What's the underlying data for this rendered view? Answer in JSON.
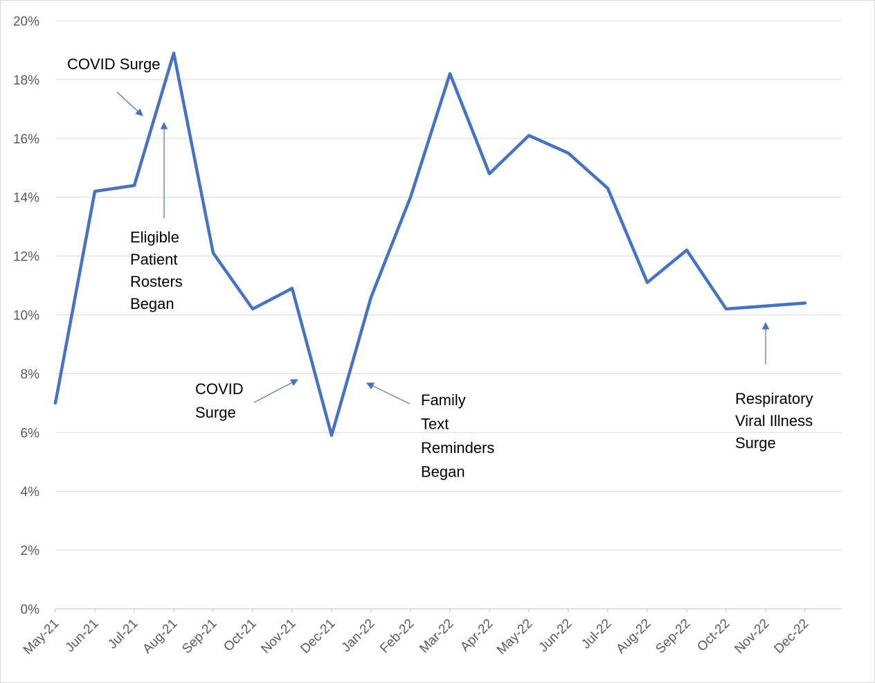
{
  "chart_data": {
    "type": "line",
    "categories": [
      "May-21",
      "Jun-21",
      "Jul-21",
      "Aug-21",
      "Sep-21",
      "Oct-21",
      "Nov-21",
      "Dec-21",
      "Jan-22",
      "Feb-22",
      "Mar-22",
      "Apr-22",
      "May-22",
      "Jun-22",
      "Jul-22",
      "Aug-22",
      "Sep-22",
      "Oct-22",
      "Nov-22",
      "Dec-22"
    ],
    "series": [
      {
        "values": [
          7.0,
          14.2,
          14.4,
          18.9,
          12.1,
          10.2,
          10.9,
          5.9,
          10.6,
          14.0,
          18.2,
          14.8,
          16.1,
          15.5,
          14.3,
          11.1,
          12.2,
          10.2,
          null,
          10.4
        ]
      }
    ],
    "yticks": [
      "0%",
      "2%",
      "4%",
      "6%",
      "8%",
      "10%",
      "12%",
      "14%",
      "16%",
      "18%",
      "20%"
    ],
    "ylim": [
      0,
      20
    ],
    "grid": true,
    "line_color": "#4472c4",
    "annotations": [
      {
        "id": "covid-surge-1",
        "lines": [
          "COVID Surge"
        ]
      },
      {
        "id": "eligible-rosters",
        "lines": [
          "Eligible",
          "Patient",
          "Rosters",
          "Began"
        ]
      },
      {
        "id": "covid-surge-2",
        "lines": [
          "COVID",
          "Surge"
        ]
      },
      {
        "id": "family-text",
        "lines": [
          "Family",
          "Text",
          "Reminders",
          "Began"
        ]
      },
      {
        "id": "respiratory",
        "lines": [
          "Respiratory",
          "Viral Illness",
          "Surge"
        ]
      }
    ]
  }
}
